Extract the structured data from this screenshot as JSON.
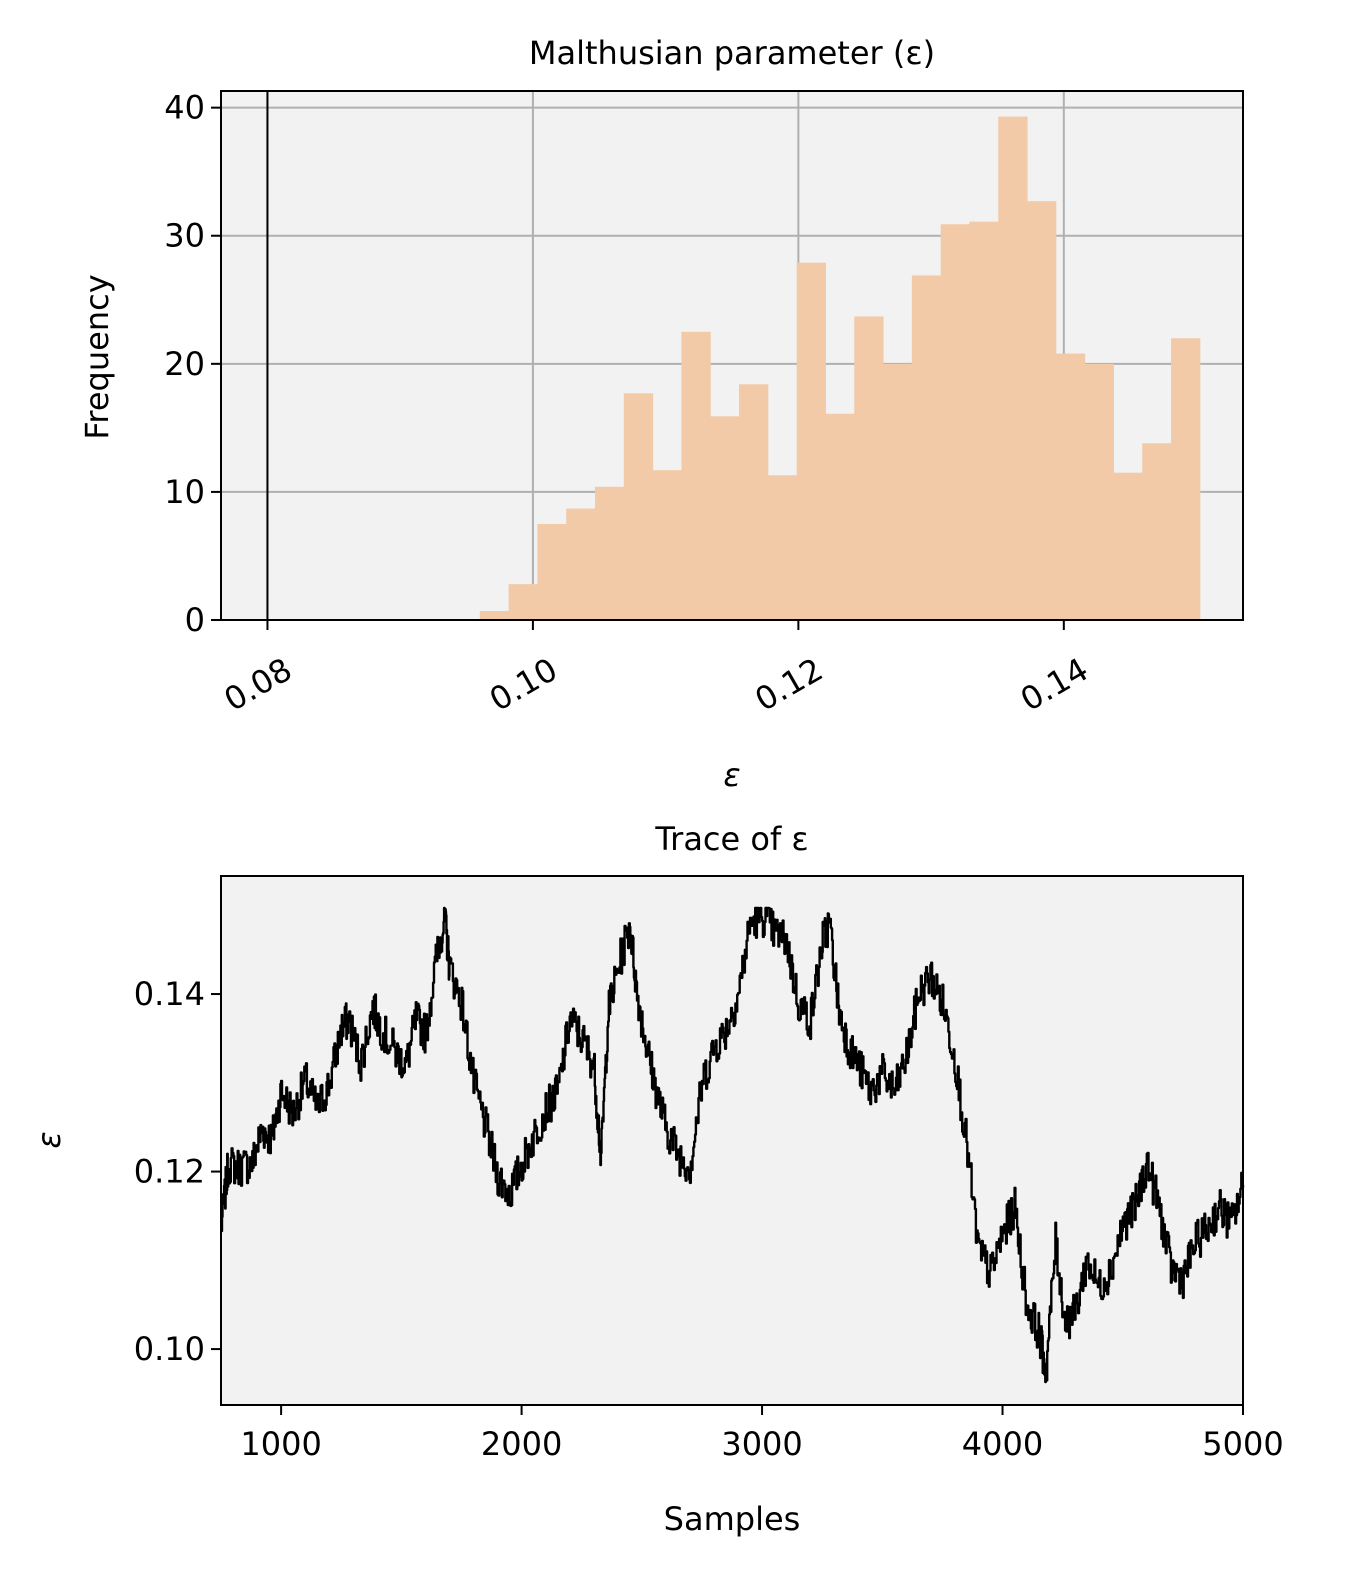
{
  "chart_data": [
    {
      "type": "bar",
      "title": "Malthusian parameter (ε)",
      "xlabel": "ε",
      "ylabel": "Frequency",
      "xlim": [
        0.0765,
        0.1535
      ],
      "ylim": [
        0,
        41.3
      ],
      "xticks": [
        0.08,
        0.1,
        0.12,
        0.14
      ],
      "xtick_labels": [
        "0.08",
        "0.10",
        "0.12",
        "0.14"
      ],
      "yticks": [
        0,
        10,
        20,
        30,
        40
      ],
      "ytick_labels": [
        "0",
        "10",
        "20",
        "30",
        "40"
      ],
      "grid": true,
      "bar_color": "#f2caa8",
      "bin_width": 0.00217,
      "bin_starts": [
        0.096,
        0.09817,
        0.10034,
        0.10251,
        0.10468,
        0.10685,
        0.10902,
        0.11119,
        0.11336,
        0.11553,
        0.1177,
        0.11987,
        0.12204,
        0.12421,
        0.12638,
        0.12855,
        0.13072,
        0.13289,
        0.13506,
        0.13723,
        0.1394,
        0.14157,
        0.14374,
        0.14591,
        0.14808
      ],
      "values": [
        0.7,
        2.8,
        7.5,
        8.7,
        10.4,
        17.7,
        11.7,
        22.5,
        15.9,
        18.4,
        11.3,
        27.9,
        16.1,
        23.7,
        20.0,
        26.9,
        30.9,
        31.1,
        39.3,
        32.7,
        20.8,
        20.0,
        11.5,
        13.8,
        22.0
      ],
      "vline": 0.08
    },
    {
      "type": "line",
      "title": "Trace of ε",
      "xlabel": "Samples",
      "ylabel": "ε",
      "xlim": [
        750,
        5000
      ],
      "ylim": [
        0.0937,
        0.1533
      ],
      "xticks": [
        1000,
        2000,
        3000,
        4000,
        5000
      ],
      "xtick_labels": [
        "1000",
        "2000",
        "3000",
        "4000",
        "5000"
      ],
      "yticks": [
        0.1,
        0.12,
        0.14
      ],
      "ytick_labels": [
        "0.10",
        "0.12",
        "0.14"
      ],
      "grid": false,
      "line_color": "#000000",
      "x": [
        750,
        780,
        830,
        880,
        920,
        960,
        1000,
        1050,
        1100,
        1150,
        1200,
        1250,
        1280,
        1330,
        1380,
        1420,
        1480,
        1520,
        1560,
        1600,
        1650,
        1680,
        1700,
        1750,
        1800,
        1850,
        1900,
        1950,
        2000,
        2050,
        2100,
        2150,
        2200,
        2250,
        2300,
        2330,
        2360,
        2400,
        2450,
        2480,
        2520,
        2560,
        2600,
        2650,
        2700,
        2750,
        2800,
        2850,
        2900,
        2950,
        3000,
        3050,
        3100,
        3150,
        3200,
        3250,
        3280,
        3320,
        3360,
        3400,
        3450,
        3500,
        3550,
        3600,
        3650,
        3700,
        3750,
        3800,
        3850,
        3900,
        3950,
        4000,
        4050,
        4100,
        4150,
        4180,
        4220,
        4260,
        4300,
        4350,
        4400,
        4450,
        4500,
        4550,
        4600,
        4650,
        4700,
        4750,
        4800,
        4850,
        4900,
        4950,
        5000
      ],
      "values": [
        0.1137,
        0.1208,
        0.1205,
        0.121,
        0.1248,
        0.1236,
        0.129,
        0.1265,
        0.1303,
        0.127,
        0.13,
        0.136,
        0.1372,
        0.1322,
        0.1385,
        0.1358,
        0.1332,
        0.132,
        0.1372,
        0.1355,
        0.145,
        0.1485,
        0.143,
        0.139,
        0.13,
        0.125,
        0.1195,
        0.1175,
        0.1208,
        0.124,
        0.127,
        0.129,
        0.1372,
        0.135,
        0.132,
        0.1215,
        0.138,
        0.143,
        0.1478,
        0.14,
        0.134,
        0.129,
        0.125,
        0.122,
        0.1205,
        0.13,
        0.134,
        0.136,
        0.14,
        0.148,
        0.1488,
        0.147,
        0.146,
        0.139,
        0.137,
        0.146,
        0.148,
        0.138,
        0.134,
        0.132,
        0.129,
        0.131,
        0.129,
        0.133,
        0.14,
        0.142,
        0.139,
        0.133,
        0.123,
        0.111,
        0.1085,
        0.113,
        0.116,
        0.105,
        0.102,
        0.0975,
        0.112,
        0.103,
        0.104,
        0.11,
        0.107,
        0.109,
        0.114,
        0.116,
        0.121,
        0.116,
        0.109,
        0.108,
        0.112,
        0.1135,
        0.116,
        0.114,
        0.1185
      ]
    }
  ]
}
